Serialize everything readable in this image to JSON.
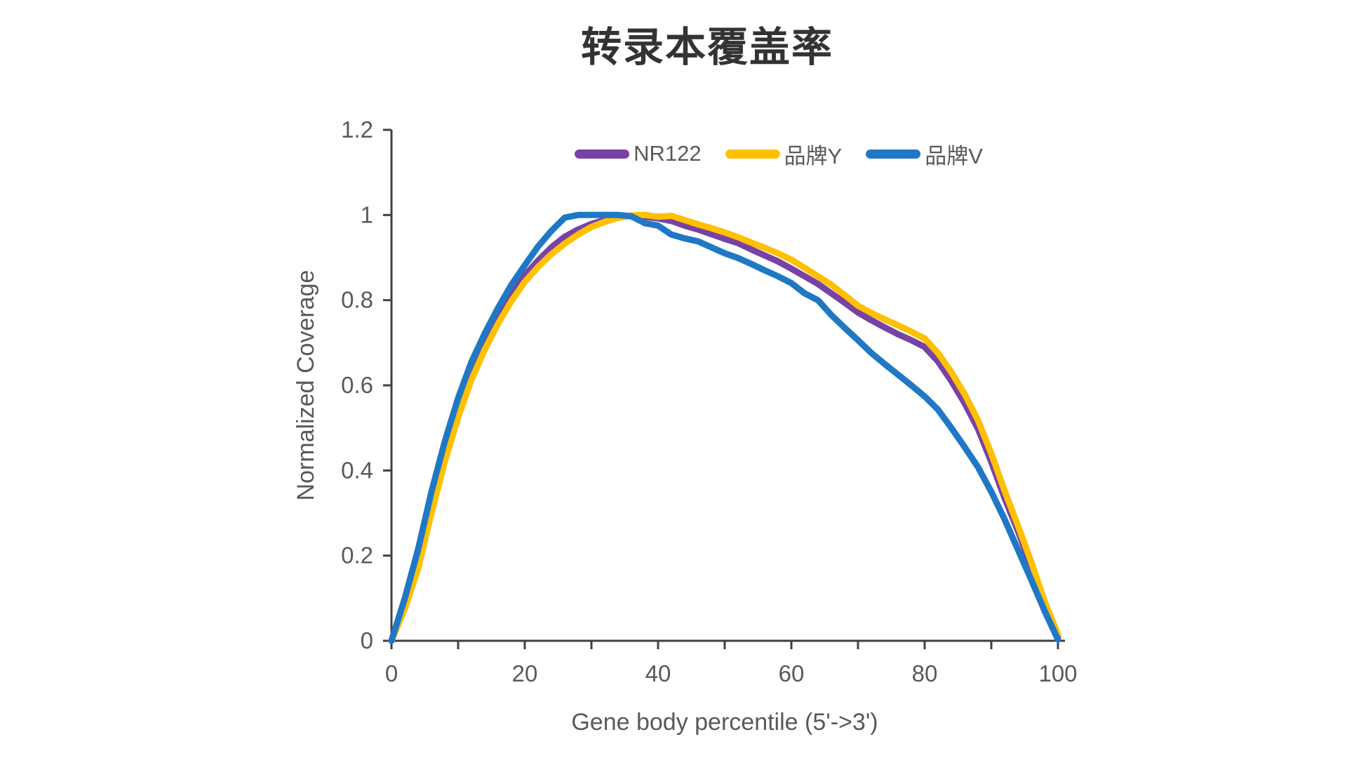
{
  "chart_data": {
    "type": "line",
    "title": "转录本覆盖率",
    "xlabel": "Gene body percentile (5'->3')",
    "ylabel": "Normalized Coverage",
    "xlim": [
      0,
      100
    ],
    "ylim": [
      0,
      1.2
    ],
    "grid": false,
    "legend_position": "top-center",
    "x_tick_labels": [
      0,
      20,
      40,
      60,
      80,
      100
    ],
    "x_minor_tick_step": 10,
    "y_ticks": [
      0,
      0.2,
      0.4,
      0.6,
      0.8,
      1,
      1.2
    ],
    "y_tick_labels": [
      "0",
      "0.2",
      "0.4",
      "0.6",
      "0.8",
      "1",
      "1.2"
    ],
    "x": [
      0,
      2,
      4,
      6,
      8,
      10,
      12,
      14,
      16,
      18,
      20,
      22,
      24,
      26,
      28,
      30,
      32,
      34,
      36,
      38,
      40,
      42,
      44,
      46,
      48,
      50,
      52,
      54,
      56,
      58,
      60,
      62,
      64,
      66,
      68,
      70,
      72,
      74,
      76,
      78,
      80,
      82,
      84,
      86,
      88,
      90,
      92,
      94,
      96,
      98,
      100
    ],
    "series": [
      {
        "name": "NR122",
        "color": "#7842A5",
        "values": [
          0,
          0.09,
          0.19,
          0.33,
          0.45,
          0.555,
          0.64,
          0.708,
          0.765,
          0.818,
          0.858,
          0.893,
          0.924,
          0.949,
          0.966,
          0.979,
          0.988,
          0.994,
          0.999,
          0.996,
          0.992,
          0.986,
          0.975,
          0.966,
          0.955,
          0.944,
          0.934,
          0.919,
          0.905,
          0.891,
          0.874,
          0.856,
          0.838,
          0.816,
          0.794,
          0.771,
          0.753,
          0.736,
          0.72,
          0.706,
          0.69,
          0.656,
          0.61,
          0.558,
          0.498,
          0.42,
          0.335,
          0.258,
          0.173,
          0.085,
          0.01
        ]
      },
      {
        "name": "品牌Y",
        "color": "#FFC000",
        "values": [
          0,
          0.075,
          0.17,
          0.3,
          0.42,
          0.525,
          0.613,
          0.684,
          0.745,
          0.798,
          0.843,
          0.878,
          0.908,
          0.933,
          0.954,
          0.972,
          0.984,
          0.993,
          0.999,
          1.0,
          0.996,
          0.998,
          0.988,
          0.978,
          0.969,
          0.959,
          0.948,
          0.935,
          0.923,
          0.91,
          0.895,
          0.876,
          0.856,
          0.836,
          0.812,
          0.787,
          0.77,
          0.755,
          0.741,
          0.726,
          0.71,
          0.676,
          0.631,
          0.579,
          0.518,
          0.44,
          0.352,
          0.27,
          0.185,
          0.092,
          0.015
        ]
      },
      {
        "name": "品牌V",
        "color": "#2078C4",
        "values": [
          0,
          0.1,
          0.215,
          0.35,
          0.468,
          0.57,
          0.655,
          0.722,
          0.782,
          0.836,
          0.882,
          0.926,
          0.963,
          0.994,
          1.0,
          1.0,
          1.0,
          1.0,
          0.997,
          0.981,
          0.975,
          0.954,
          0.945,
          0.938,
          0.924,
          0.91,
          0.899,
          0.885,
          0.87,
          0.856,
          0.84,
          0.816,
          0.8,
          0.765,
          0.735,
          0.706,
          0.676,
          0.65,
          0.625,
          0.6,
          0.574,
          0.543,
          0.5,
          0.455,
          0.408,
          0.35,
          0.285,
          0.214,
          0.143,
          0.07,
          0.003
        ]
      }
    ]
  },
  "colors": {
    "axis": "#404040",
    "tick_labels": "#595959",
    "title": "#333333"
  }
}
